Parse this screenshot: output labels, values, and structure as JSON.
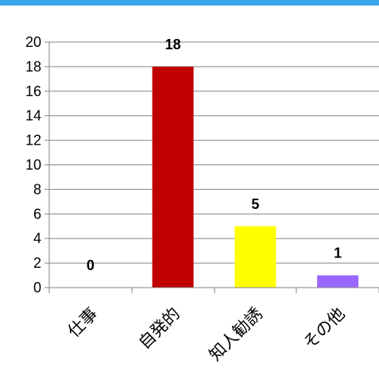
{
  "chart_data": {
    "type": "bar",
    "title": "",
    "xlabel": "",
    "ylabel": "",
    "categories": [
      "仕事",
      "自発的",
      "知人勧誘",
      "その他"
    ],
    "values": [
      0,
      18,
      5,
      1
    ],
    "colors": [
      "#c00000",
      "#c00000",
      "#ffff00",
      "#9966ff"
    ],
    "ylim": [
      0,
      20
    ],
    "ytick_step": 2,
    "grid": true,
    "legend": "none",
    "data_labels": [
      "0",
      "18",
      "5",
      "1"
    ]
  },
  "header_bar_color": "#3aa7ea"
}
